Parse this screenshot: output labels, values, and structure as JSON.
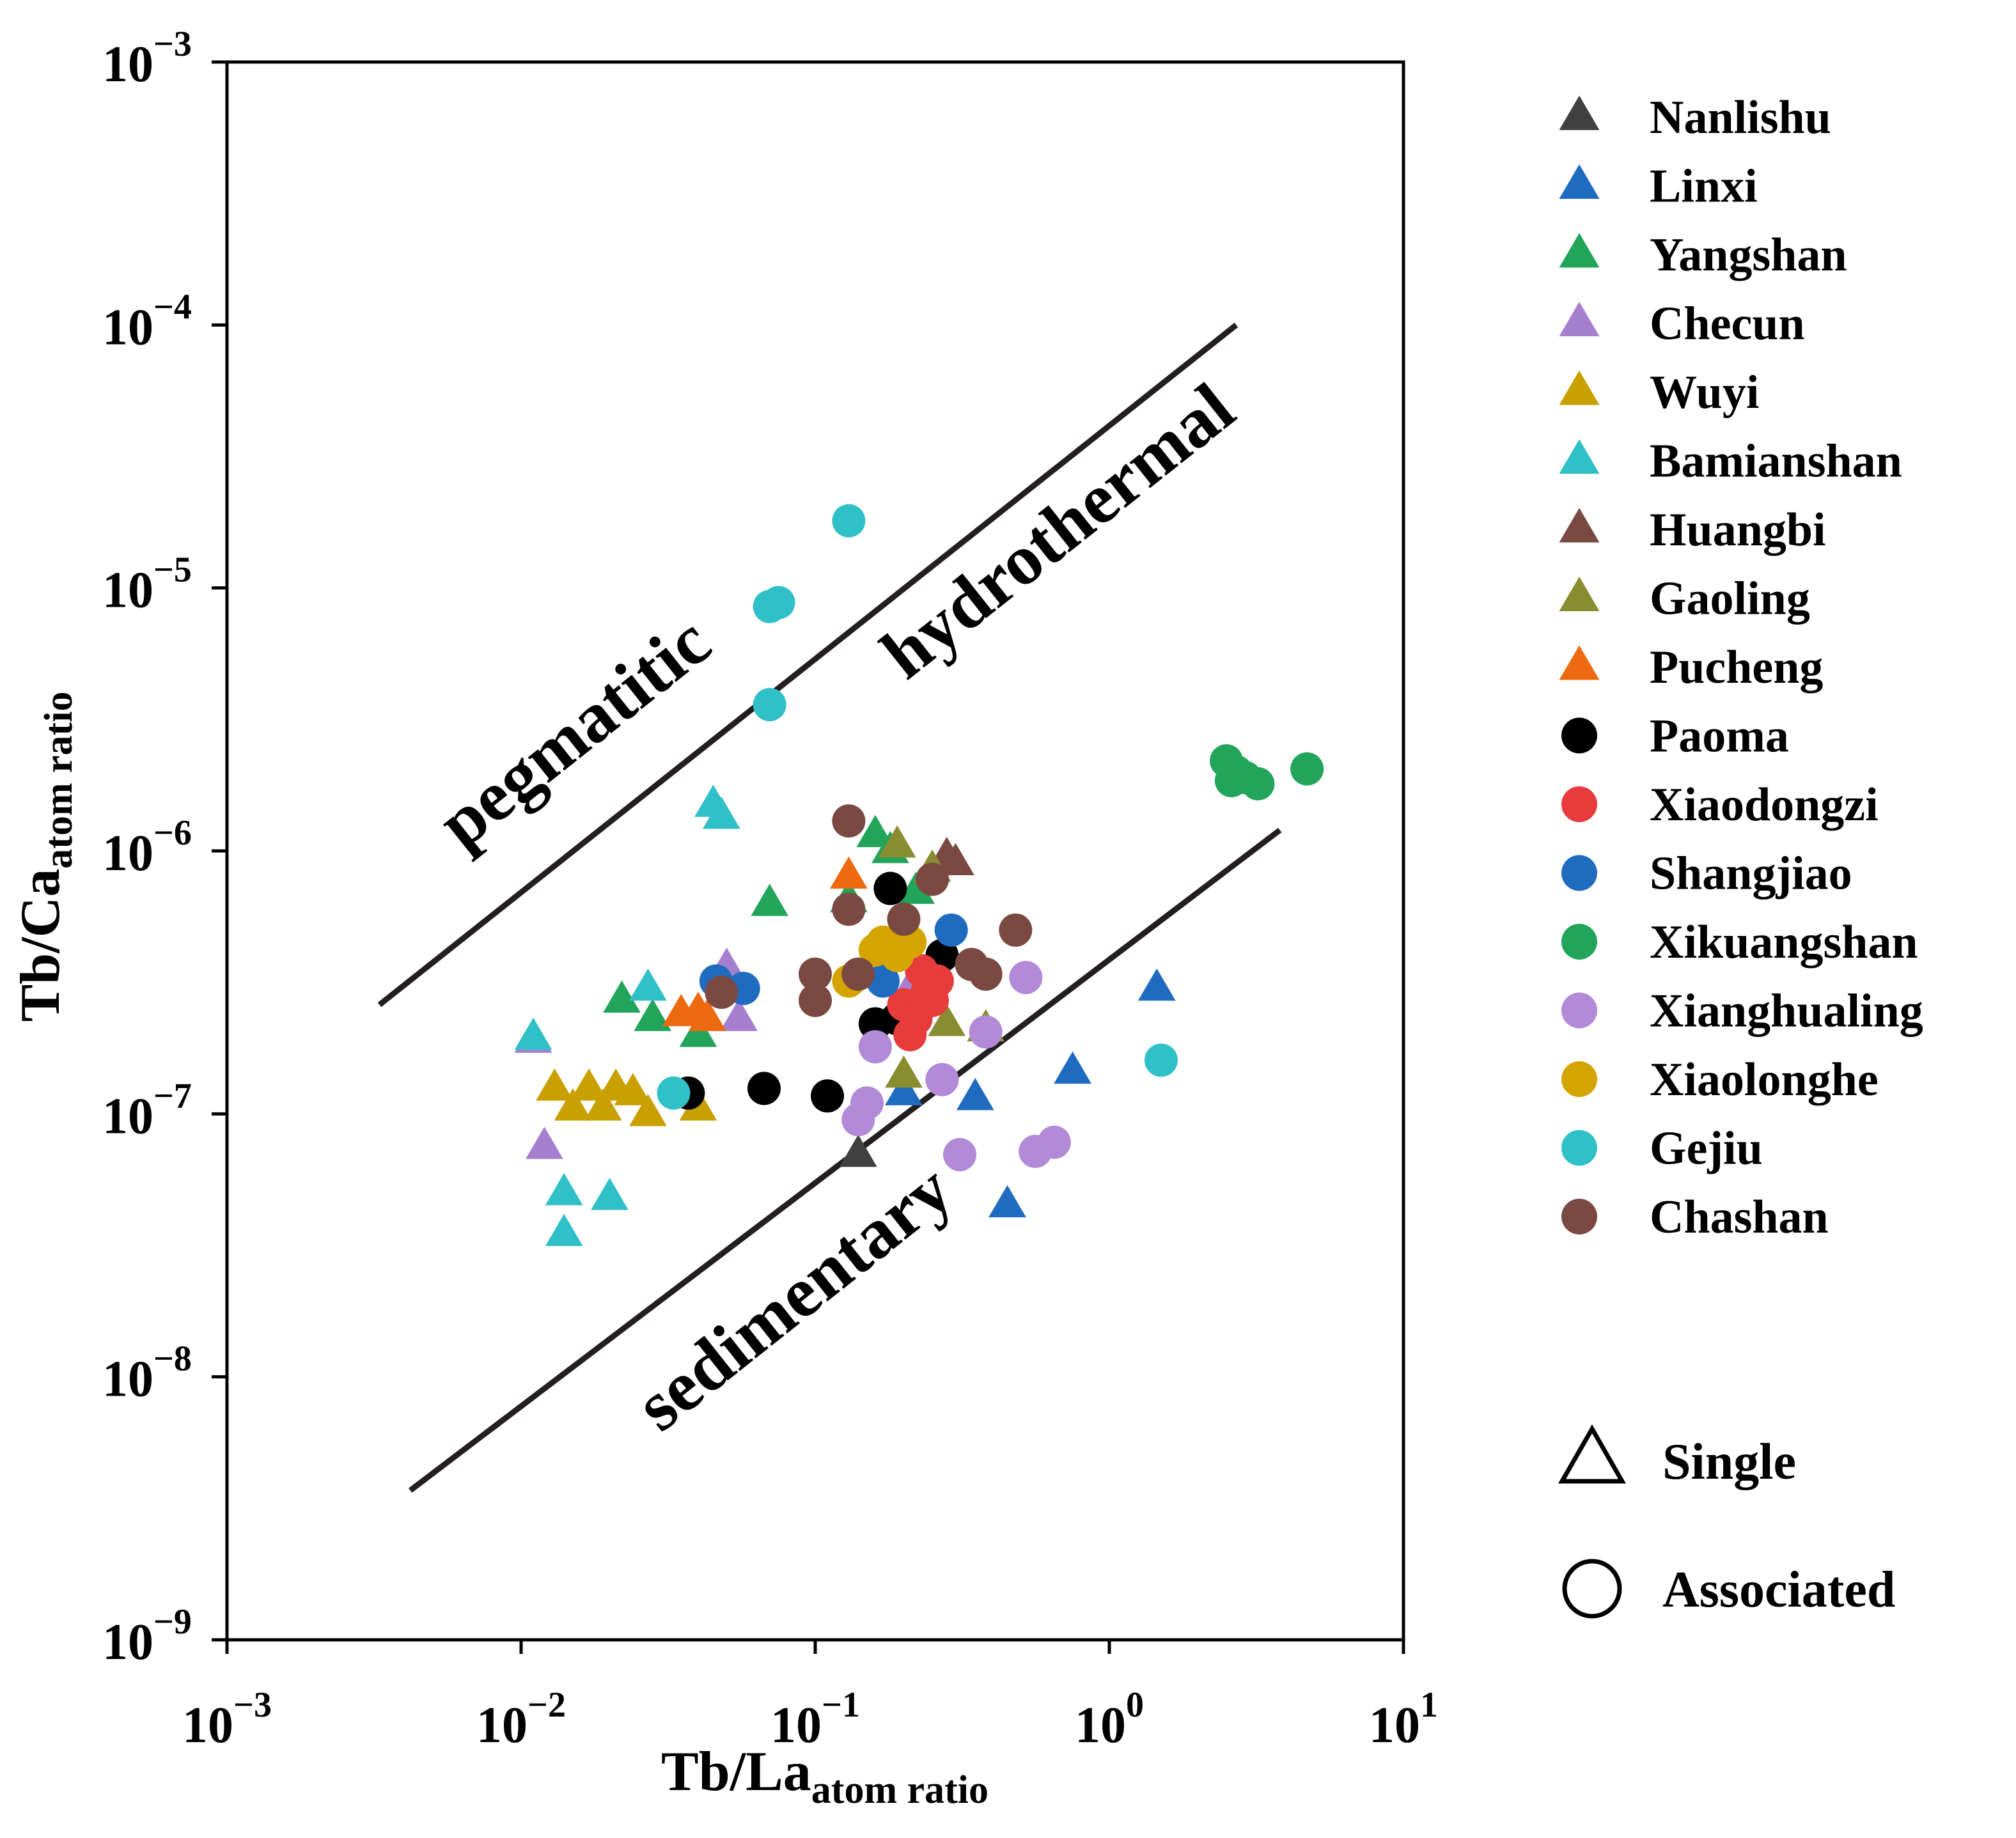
{
  "chart_data": {
    "type": "scatter",
    "title": "",
    "xlabel": {
      "main": "Tb/La",
      "sub": "atom ratio"
    },
    "ylabel": {
      "main": "Tb/Ca",
      "sub": "atom ratio"
    },
    "xscale": "log",
    "yscale": "log",
    "xlim": [
      0.001,
      10
    ],
    "ylim": [
      1e-09,
      0.001
    ],
    "x_ticks": [
      {
        "value": 0.001,
        "base": "10",
        "exp": "−3"
      },
      {
        "value": 0.01,
        "base": "10",
        "exp": "−2"
      },
      {
        "value": 0.1,
        "base": "10",
        "exp": "−1"
      },
      {
        "value": 1,
        "base": "10",
        "exp": "0"
      },
      {
        "value": 10,
        "base": "10",
        "exp": "1"
      }
    ],
    "y_ticks": [
      {
        "value": 1e-09,
        "base": "10",
        "exp": "−9"
      },
      {
        "value": 1e-08,
        "base": "10",
        "exp": "−8"
      },
      {
        "value": 1e-07,
        "base": "10",
        "exp": "−7"
      },
      {
        "value": 1e-06,
        "base": "10",
        "exp": "−6"
      },
      {
        "value": 1e-05,
        "base": "10",
        "exp": "−5"
      },
      {
        "value": 0.0001,
        "base": "10",
        "exp": "−4"
      },
      {
        "value": 0.001,
        "base": "10",
        "exp": "−3"
      }
    ],
    "boundary_lines": [
      {
        "name": "upper-boundary",
        "x": [
          0.0033,
          2.7
        ],
        "y": [
          2.6e-07,
          0.0001
        ]
      },
      {
        "name": "lower-boundary",
        "x": [
          0.0042,
          3.8
        ],
        "y": [
          3.7e-09,
          1.2e-06
        ]
      }
    ],
    "region_labels": [
      {
        "name": "pegmatitic",
        "text": "pegmatitic",
        "x": 0.017,
        "y": 2.4e-06
      },
      {
        "name": "hydrothermal",
        "text": "hydrothermal",
        "x": 0.75,
        "y": 1.4e-05
      },
      {
        "name": "sedimentary",
        "text": "sedimentary",
        "x": 0.095,
        "y": 1.7e-08
      }
    ],
    "legend_position": "right",
    "shape_legend": [
      {
        "shape": "triangle",
        "label": "Single"
      },
      {
        "shape": "circle",
        "label": "Associated"
      }
    ],
    "series": [
      {
        "name": "Nanlishu",
        "marker": "triangle",
        "color": "#404040",
        "points": [
          [
            0.14,
            7e-08
          ]
        ]
      },
      {
        "name": "Linxi",
        "marker": "triangle",
        "color": "#1f6bc0",
        "points": [
          [
            1.45,
            3e-07
          ],
          [
            0.75,
            1.45e-07
          ],
          [
            0.35,
            1.15e-07
          ],
          [
            0.45,
            4.5e-08
          ],
          [
            0.2,
            1.2e-07
          ]
        ]
      },
      {
        "name": "Yangshan",
        "marker": "triangle",
        "color": "#22a55a",
        "points": [
          [
            0.07,
            6.3e-07
          ],
          [
            0.022,
            2.7e-07
          ],
          [
            0.028,
            2.3e-07
          ],
          [
            0.04,
            2e-07
          ],
          [
            0.16,
            1.15e-06
          ],
          [
            0.18,
            1e-06
          ],
          [
            0.13,
            6.5e-07
          ],
          [
            0.22,
            7e-07
          ]
        ]
      },
      {
        "name": "Checun",
        "marker": "triangle",
        "color": "#a77fd0",
        "points": [
          [
            0.011,
            1.9e-07
          ],
          [
            0.012,
            7.5e-08
          ],
          [
            0.05,
            3.6e-07
          ],
          [
            0.055,
            2.3e-07
          ],
          [
            0.21,
            3e-07
          ]
        ]
      },
      {
        "name": "Wuyi",
        "marker": "triangle",
        "color": "#c9a000",
        "points": [
          [
            0.013,
            1.25e-07
          ],
          [
            0.015,
            1.05e-07
          ],
          [
            0.017,
            1.25e-07
          ],
          [
            0.019,
            1.05e-07
          ],
          [
            0.021,
            1.25e-07
          ],
          [
            0.024,
            1.2e-07
          ],
          [
            0.027,
            1e-07
          ],
          [
            0.04,
            1.05e-07
          ]
        ]
      },
      {
        "name": "Bamianshan",
        "marker": "triangle",
        "color": "#30c0c8",
        "points": [
          [
            0.045,
            1.5e-06
          ],
          [
            0.048,
            1.35e-06
          ],
          [
            0.011,
            1.95e-07
          ],
          [
            0.014,
            5e-08
          ],
          [
            0.014,
            3.5e-08
          ],
          [
            0.02,
            4.8e-08
          ],
          [
            0.027,
            3e-07
          ]
        ]
      },
      {
        "name": "Huangbi",
        "marker": "triangle",
        "color": "#7a4a42",
        "points": [
          [
            0.28,
            9.5e-07
          ],
          [
            0.3,
            9e-07
          ]
        ]
      },
      {
        "name": "Gaoling",
        "marker": "triangle",
        "color": "#8a8c30",
        "points": [
          [
            0.19,
            1.05e-06
          ],
          [
            0.25,
            8.5e-07
          ],
          [
            0.28,
            2.2e-07
          ],
          [
            0.38,
            2.1e-07
          ],
          [
            0.2,
            1.4e-07
          ]
        ]
      },
      {
        "name": "Pucheng",
        "marker": "triangle",
        "color": "#ee6a10",
        "points": [
          [
            0.13,
            8e-07
          ],
          [
            0.035,
            2.4e-07
          ],
          [
            0.04,
            2.45e-07
          ],
          [
            0.043,
            2.3e-07
          ]
        ]
      },
      {
        "name": "Paoma",
        "marker": "circle",
        "color": "#000000",
        "points": [
          [
            0.037,
            1.2e-07
          ],
          [
            0.067,
            1.25e-07
          ],
          [
            0.11,
            1.17e-07
          ],
          [
            0.16,
            2.2e-07
          ],
          [
            0.18,
            7.2e-07
          ],
          [
            0.19,
            2.3e-07
          ],
          [
            0.27,
            4e-07
          ]
        ]
      },
      {
        "name": "Xiaodongzi",
        "marker": "circle",
        "color": "#e83b3b",
        "points": [
          [
            0.2,
            2.6e-07
          ],
          [
            0.22,
            2.3e-07
          ],
          [
            0.24,
            2.9e-07
          ],
          [
            0.21,
            2e-07
          ],
          [
            0.26,
            3.2e-07
          ],
          [
            0.23,
            3.5e-07
          ],
          [
            0.25,
            2.7e-07
          ]
        ]
      },
      {
        "name": "Shangjiao",
        "marker": "circle",
        "color": "#1f6bc0",
        "points": [
          [
            0.046,
            3.2e-07
          ],
          [
            0.057,
            3e-07
          ],
          [
            0.29,
            5e-07
          ],
          [
            0.17,
            3.2e-07
          ]
        ]
      },
      {
        "name": "Xikuangshan",
        "marker": "circle",
        "color": "#22a55a",
        "points": [
          [
            2.5,
            2.2e-06
          ],
          [
            2.7,
            2e-06
          ],
          [
            2.9,
            1.9e-06
          ],
          [
            3.2,
            1.8e-06
          ],
          [
            2.6,
            1.85e-06
          ],
          [
            4.7,
            2.05e-06
          ]
        ]
      },
      {
        "name": "Xianghualing",
        "marker": "circle",
        "color": "#b28ad8",
        "points": [
          [
            0.16,
            1.8e-07
          ],
          [
            0.15,
            1.1e-07
          ],
          [
            0.14,
            9.5e-08
          ],
          [
            0.27,
            1.35e-07
          ],
          [
            0.38,
            2.05e-07
          ],
          [
            0.52,
            3.3e-07
          ],
          [
            0.31,
            7e-08
          ],
          [
            0.56,
            7.2e-08
          ],
          [
            0.65,
            7.8e-08
          ]
        ]
      },
      {
        "name": "Xiaolonghe",
        "marker": "circle",
        "color": "#d4a500",
        "points": [
          [
            0.17,
            4.5e-07
          ],
          [
            0.19,
            4e-07
          ],
          [
            0.16,
            4.2e-07
          ],
          [
            0.21,
            4.5e-07
          ],
          [
            0.13,
            3.2e-07
          ]
        ]
      },
      {
        "name": "Gejiu",
        "marker": "circle",
        "color": "#30c0c8",
        "points": [
          [
            0.13,
            1.8e-05
          ],
          [
            0.07,
            8.5e-06
          ],
          [
            0.075,
            8.8e-06
          ],
          [
            0.07,
            3.6e-06
          ],
          [
            0.033,
            1.2e-07
          ],
          [
            1.5,
            1.6e-07
          ]
        ]
      },
      {
        "name": "Chashan",
        "marker": "circle",
        "color": "#7a4a42",
        "points": [
          [
            0.13,
            1.3e-06
          ],
          [
            0.25,
            7.8e-07
          ],
          [
            0.2,
            5.5e-07
          ],
          [
            0.13,
            6e-07
          ],
          [
            0.48,
            5e-07
          ],
          [
            0.1,
            3.4e-07
          ],
          [
            0.14,
            3.4e-07
          ],
          [
            0.1,
            2.7e-07
          ],
          [
            0.34,
            3.7e-07
          ],
          [
            0.38,
            3.4e-07
          ],
          [
            0.048,
            2.9e-07
          ]
        ]
      }
    ]
  }
}
